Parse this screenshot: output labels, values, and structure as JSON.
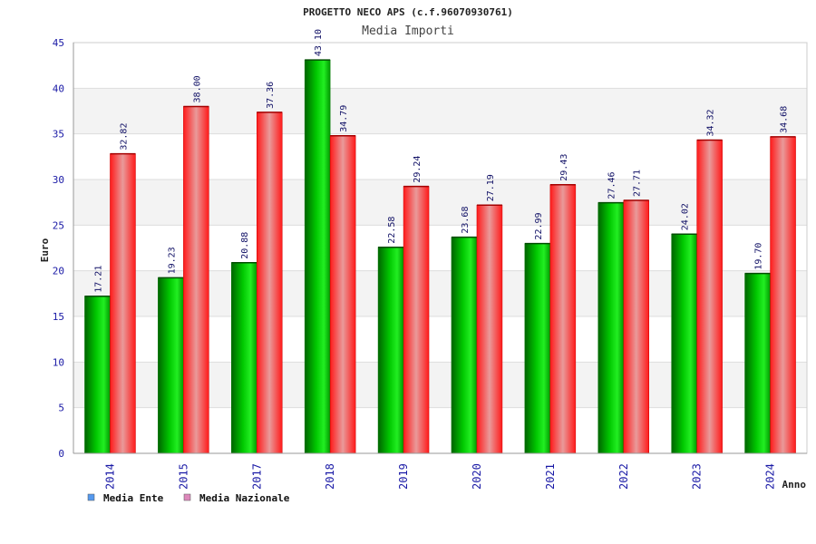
{
  "chart_data": {
    "type": "bar",
    "title": "PROGETTO NECO APS (c.f.96070930761)",
    "subtitle": "Media Importi",
    "xlabel": "Anno",
    "ylabel": "Euro",
    "ylim": [
      0,
      45
    ],
    "yticks": [
      0,
      5,
      10,
      15,
      20,
      25,
      30,
      35,
      40,
      45
    ],
    "grid": true,
    "legend_position": "bottom-left",
    "categories": [
      "2014",
      "2015",
      "2017",
      "2018",
      "2019",
      "2020",
      "2021",
      "2022",
      "2023",
      "2024"
    ],
    "series": [
      {
        "name": "Media Ente",
        "values": [
          17.21,
          19.23,
          20.88,
          43.1,
          22.58,
          23.68,
          22.99,
          27.46,
          24.02,
          19.7
        ],
        "labels": [
          "17.21",
          "19.23",
          "20.88",
          "43.10",
          "22.58",
          "23.68",
          "22.99",
          "27.46",
          "24.02",
          "19.70"
        ],
        "color": "#00b000",
        "legend_color": "#5599ee"
      },
      {
        "name": "Media Nazionale",
        "values": [
          32.82,
          38.0,
          37.36,
          34.79,
          29.24,
          27.19,
          29.43,
          27.71,
          34.32,
          34.68
        ],
        "labels": [
          "32.82",
          "38.00",
          "37.36",
          "34.79",
          "29.24",
          "27.19",
          "29.43",
          "27.71",
          "34.32",
          "34.68"
        ],
        "color": "#ee1111",
        "legend_color": "#dd88bb"
      }
    ]
  }
}
